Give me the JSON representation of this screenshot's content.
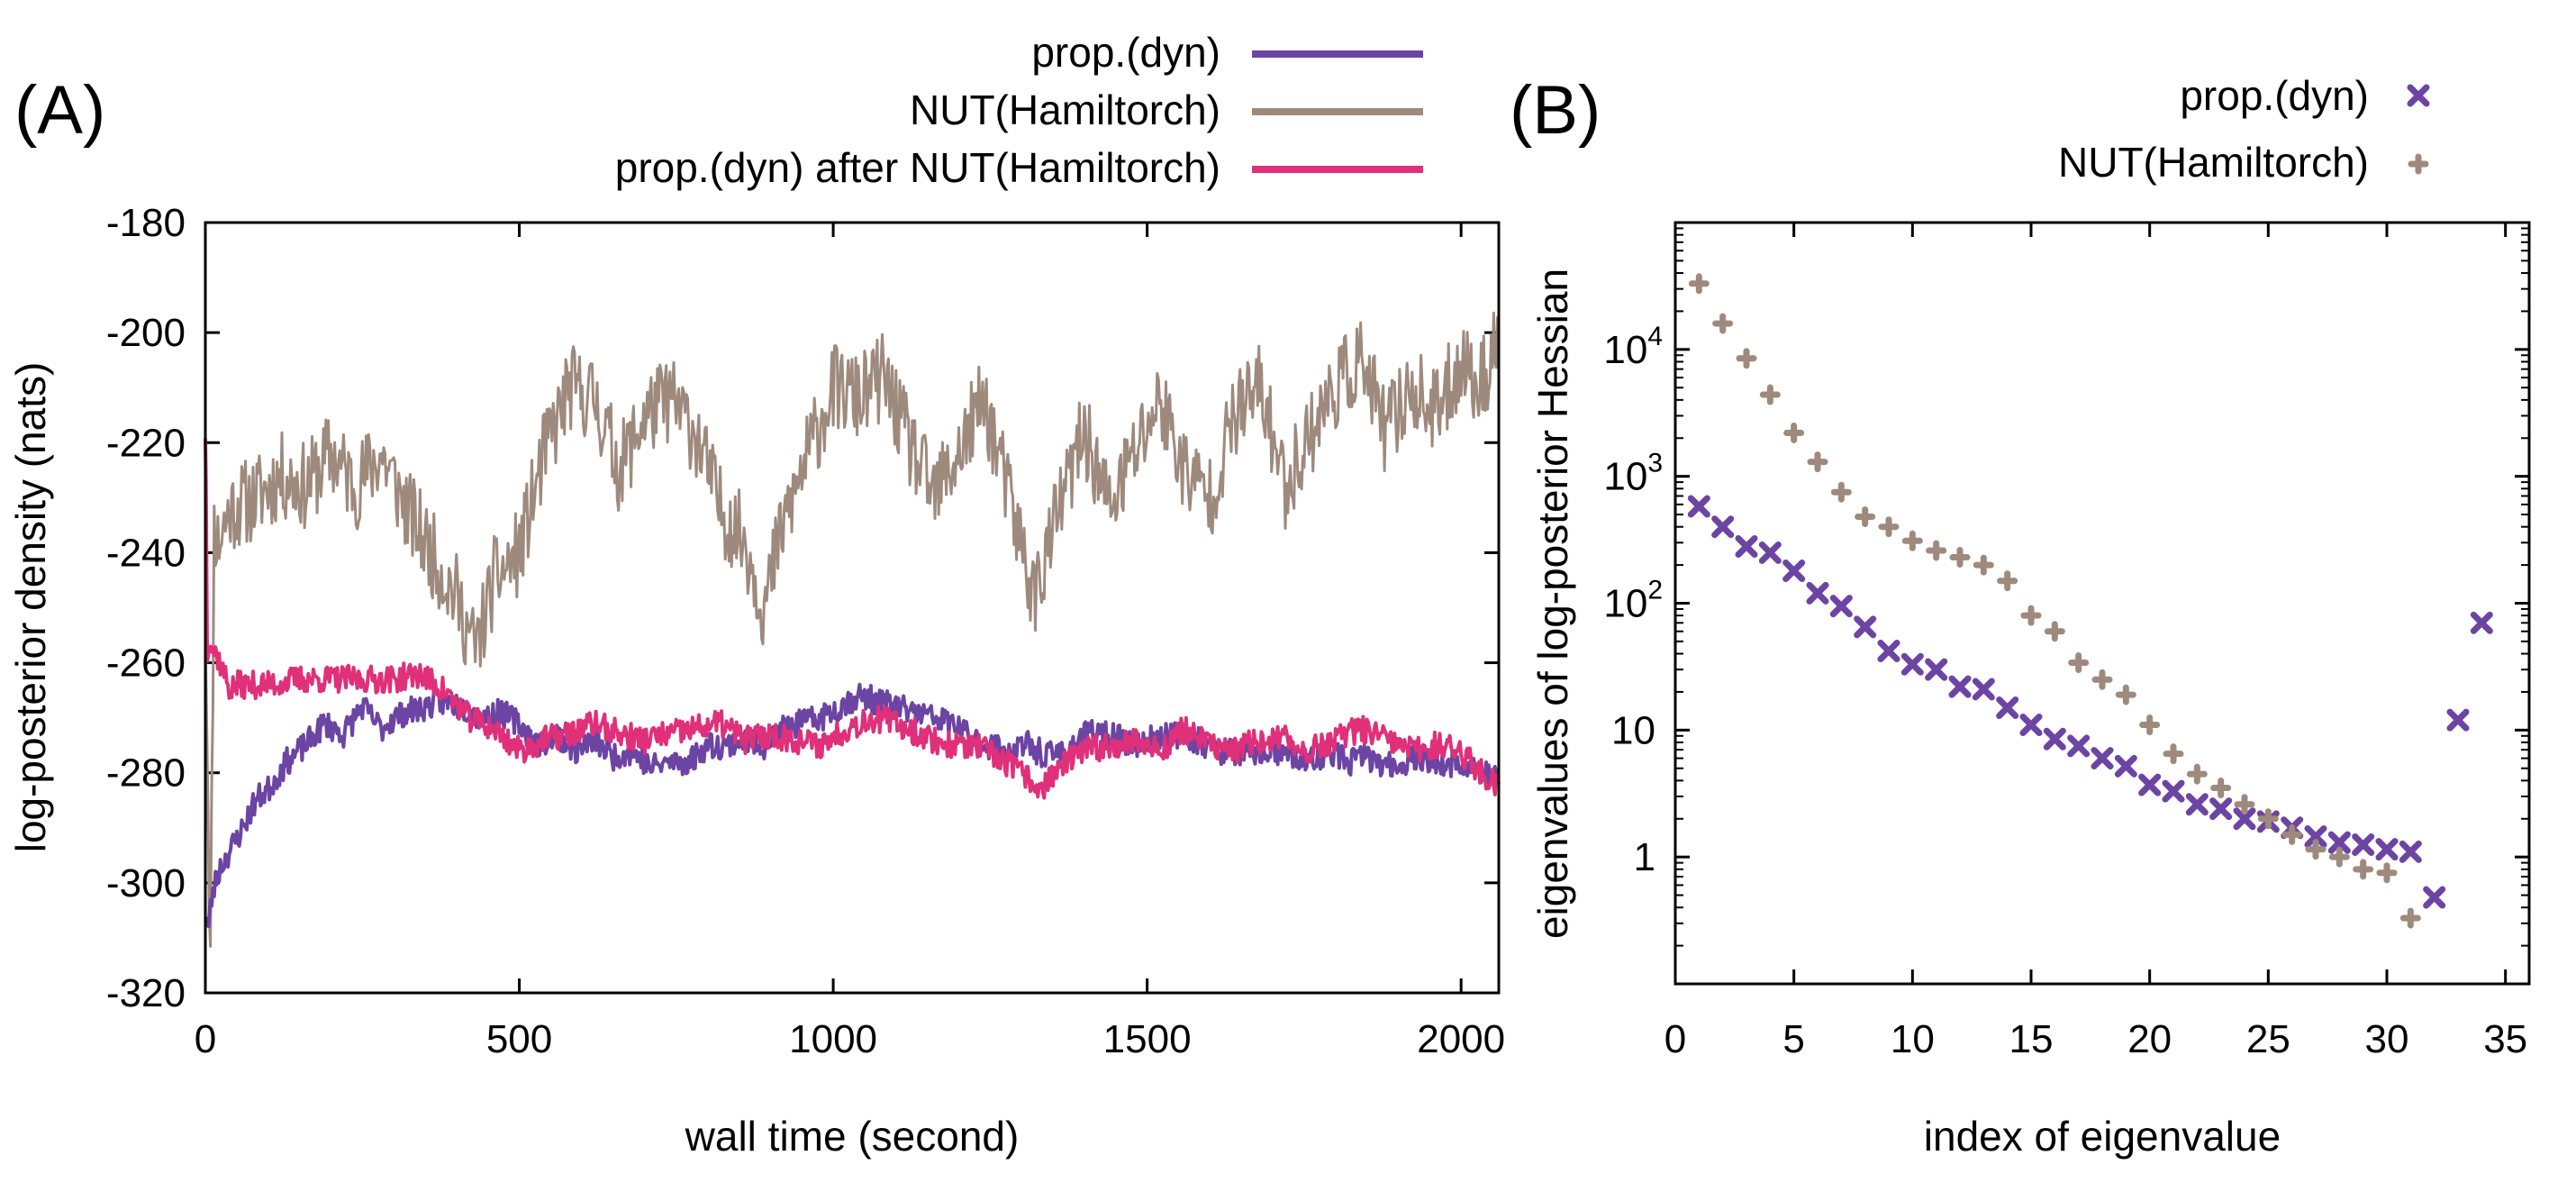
{
  "colors": {
    "prop": "#6c44a4",
    "nut": "#9e8a7d",
    "after": "#e0307a"
  },
  "chart_data": [
    {
      "panel_label": "(A)",
      "type": "line",
      "xlabel": "wall time (second)",
      "ylabel": "log-posterior density (nats)",
      "xlim": [
        0,
        2060
      ],
      "ylim": [
        -320,
        -180
      ],
      "xticks": [
        0,
        500,
        1000,
        1500,
        2000
      ],
      "yticks": [
        -180,
        -200,
        -220,
        -240,
        -260,
        -280,
        -300,
        -320
      ],
      "series": [
        {
          "name": "NUT(Hamiltorch)",
          "color": "#9e8a7d",
          "band": 8,
          "noise_seed": 11,
          "x": [
            0,
            8,
            14,
            20,
            40,
            80,
            120,
            160,
            200,
            240,
            280,
            320,
            360,
            400,
            430,
            460,
            500,
            540,
            580,
            620,
            660,
            700,
            740,
            780,
            820,
            860,
            890,
            920,
            960,
            1000,
            1040,
            1080,
            1120,
            1160,
            1200,
            1240,
            1280,
            1320,
            1360,
            1400,
            1440,
            1480,
            1520,
            1560,
            1600,
            1640,
            1680,
            1720,
            1760,
            1800,
            1840,
            1880,
            1920,
            1960,
            2000,
            2030,
            2060
          ],
          "values": [
            -250,
            -315,
            -235,
            -238,
            -232,
            -230,
            -226,
            -228,
            -222,
            -228,
            -222,
            -232,
            -240,
            -248,
            -258,
            -245,
            -240,
            -222,
            -210,
            -212,
            -225,
            -215,
            -212,
            -218,
            -232,
            -238,
            -250,
            -235,
            -222,
            -210,
            -212,
            -208,
            -220,
            -230,
            -222,
            -212,
            -230,
            -248,
            -232,
            -218,
            -232,
            -222,
            -212,
            -225,
            -230,
            -215,
            -210,
            -228,
            -218,
            -210,
            -205,
            -218,
            -210,
            -215,
            -205,
            -210,
            -200
          ]
        },
        {
          "name": "prop.(dyn)",
          "color": "#6c44a4",
          "band": 2.5,
          "noise_seed": 23,
          "x": [
            0,
            5,
            10,
            20,
            40,
            60,
            80,
            100,
            130,
            160,
            190,
            220,
            250,
            280,
            300,
            320,
            350,
            380,
            410,
            440,
            470,
            500,
            530,
            560,
            590,
            620,
            650,
            680,
            710,
            740,
            770,
            800,
            830,
            860,
            890,
            920,
            950,
            980,
            1010,
            1040,
            1070,
            1100,
            1130,
            1160,
            1190,
            1220,
            1250,
            1280,
            1310,
            1340,
            1370,
            1400,
            1430,
            1460,
            1490,
            1520,
            1550,
            1580,
            1610,
            1640,
            1670,
            1700,
            1730,
            1760,
            1790,
            1820,
            1850,
            1880,
            1910,
            1940,
            1970,
            2000,
            2030,
            2060
          ],
          "values": [
            -305,
            -308,
            -303,
            -298,
            -294,
            -290,
            -285,
            -283,
            -278,
            -275,
            -271,
            -273,
            -268,
            -272,
            -270,
            -269,
            -268,
            -267,
            -268,
            -270,
            -269,
            -271,
            -275,
            -273,
            -276,
            -274,
            -277,
            -276,
            -279,
            -278,
            -278,
            -275,
            -275,
            -274,
            -275,
            -272,
            -271,
            -270,
            -268,
            -266,
            -267,
            -268,
            -269,
            -270,
            -271,
            -274,
            -275,
            -276,
            -275,
            -277,
            -276,
            -273,
            -273,
            -274,
            -275,
            -273,
            -273,
            -274,
            -276,
            -276,
            -277,
            -276,
            -277,
            -278,
            -276,
            -278,
            -277,
            -279,
            -278,
            -277,
            -279,
            -278,
            -280,
            -281
          ]
        },
        {
          "name": "prop.(dyn) after NUT(Hamiltorch)",
          "color": "#e0307a",
          "band": 2.5,
          "noise_seed": 37,
          "x": [
            0,
            1,
            3,
            6,
            10,
            20,
            30,
            40,
            50,
            70,
            100,
            150,
            200,
            250,
            300,
            340,
            380,
            420,
            460,
            500,
            540,
            580,
            620,
            660,
            700,
            740,
            780,
            820,
            860,
            900,
            940,
            980,
            1020,
            1060,
            1100,
            1140,
            1180,
            1220,
            1260,
            1300,
            1330,
            1360,
            1400,
            1440,
            1480,
            1520,
            1560,
            1600,
            1640,
            1680,
            1720,
            1760,
            1800,
            1840,
            1880,
            1920,
            1960,
            2000,
            2030,
            2060
          ],
          "values": [
            -218,
            -228,
            -258,
            -255,
            -257,
            -259,
            -262,
            -265,
            -264,
            -264,
            -264,
            -263,
            -263,
            -263,
            -263,
            -262,
            -265,
            -270,
            -272,
            -276,
            -274,
            -273,
            -271,
            -273,
            -274,
            -273,
            -272,
            -271,
            -274,
            -273,
            -274,
            -275,
            -272,
            -270,
            -271,
            -273,
            -275,
            -275,
            -277,
            -280,
            -283,
            -279,
            -276,
            -275,
            -274,
            -276,
            -272,
            -275,
            -276,
            -274,
            -274,
            -276,
            -274,
            -272,
            -274,
            -276,
            -275,
            -276,
            -280,
            -282
          ]
        }
      ]
    },
    {
      "panel_label": "(B)",
      "type": "scatter",
      "xlabel": "index of eigenvalue",
      "ylabel": "eigenvalues of log-posterior Hessian",
      "yscale": "log",
      "xlim": [
        0,
        36
      ],
      "ylim": [
        0.1,
        100000
      ],
      "xticks": [
        0,
        5,
        10,
        15,
        20,
        25,
        30,
        35
      ],
      "yticks": [
        {
          "value": 1,
          "label": "1"
        },
        {
          "value": 10,
          "label": "10"
        },
        {
          "value": 100,
          "label": "10",
          "exp": "2"
        },
        {
          "value": 1000,
          "label": "10",
          "exp": "3"
        },
        {
          "value": 10000,
          "label": "10",
          "exp": "4"
        }
      ],
      "series": [
        {
          "name": "prop.(dyn)",
          "marker": "x",
          "color": "#6c44a4",
          "x": [
            1,
            2,
            3,
            4,
            5,
            6,
            7,
            8,
            9,
            10,
            11,
            12,
            13,
            14,
            15,
            16,
            17,
            18,
            19,
            20,
            21,
            22,
            23,
            24,
            25,
            26,
            27,
            28,
            29,
            30,
            31,
            32,
            33,
            34
          ],
          "values": [
            580,
            400,
            280,
            250,
            180,
            120,
            95,
            65,
            42,
            33,
            30,
            22,
            21,
            15,
            11,
            8.5,
            7.5,
            6,
            5.2,
            3.7,
            3.3,
            2.6,
            2.4,
            2,
            1.9,
            1.7,
            1.45,
            1.3,
            1.25,
            1.15,
            1.1,
            0.48,
            12,
            70
          ]
        },
        {
          "name": "NUT(Hamiltorch)",
          "marker": "+",
          "color": "#9e8a7d",
          "x": [
            1,
            2,
            3,
            4,
            5,
            6,
            7,
            8,
            9,
            10,
            11,
            12,
            13,
            14,
            15,
            16,
            17,
            18,
            19,
            20,
            21,
            22,
            23,
            24,
            25,
            26,
            27,
            28,
            29,
            30,
            31
          ],
          "values": [
            33000,
            16000,
            8500,
            4400,
            2200,
            1300,
            750,
            480,
            400,
            310,
            260,
            230,
            200,
            150,
            80,
            60,
            34,
            25,
            19,
            11,
            6.5,
            4.5,
            3.5,
            2.6,
            2.0,
            1.5,
            1.15,
            1.0,
            0.8,
            0.75,
            0.33
          ]
        }
      ]
    }
  ]
}
